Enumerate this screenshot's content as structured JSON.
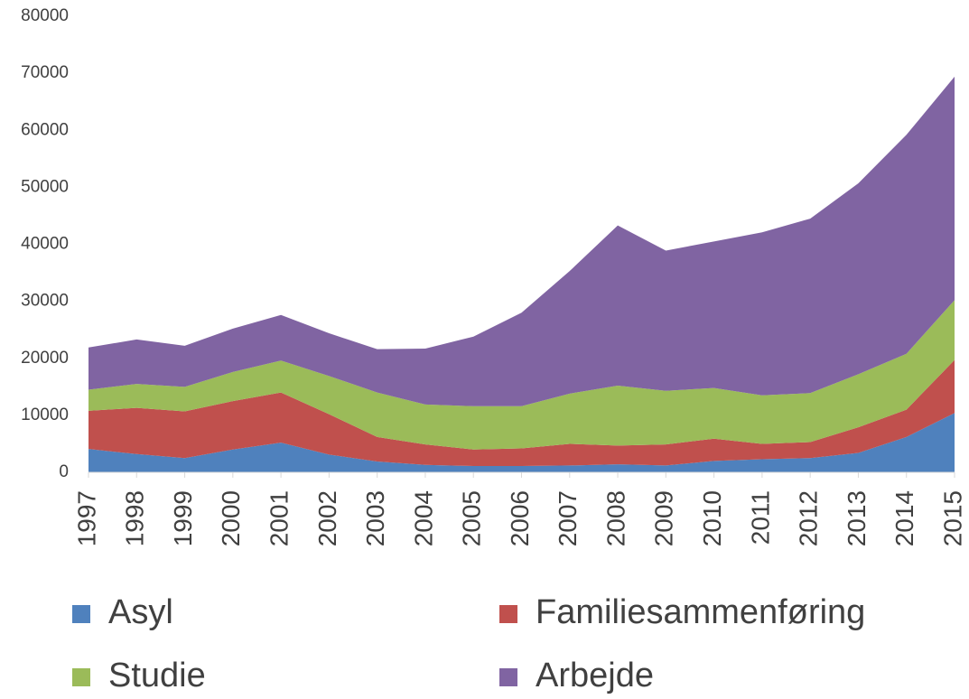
{
  "chart_data": {
    "type": "stacked_area",
    "categories": [
      "1997",
      "1998",
      "1999",
      "2000",
      "2001",
      "2002",
      "2003",
      "2004",
      "2005",
      "2006",
      "2007",
      "2008",
      "2009",
      "2010",
      "2011",
      "2012",
      "2013",
      "2014",
      "2015"
    ],
    "series": [
      {
        "name": "Asyl",
        "color": "#4f81bd",
        "values": [
          4100,
          3200,
          2500,
          4000,
          5200,
          3100,
          1900,
          1300,
          1100,
          1100,
          1200,
          1400,
          1200,
          2000,
          2300,
          2500,
          3400,
          6200,
          10400
        ]
      },
      {
        "name": "Familiesammenføring",
        "color": "#c0504d",
        "values": [
          6700,
          8100,
          8200,
          8500,
          8800,
          7100,
          4300,
          3600,
          2900,
          3100,
          3800,
          3300,
          3700,
          3900,
          2700,
          2800,
          4500,
          4800,
          9300
        ]
      },
      {
        "name": "Studie",
        "color": "#9bbb59",
        "values": [
          3700,
          4200,
          4300,
          5100,
          5600,
          6700,
          7800,
          7000,
          7600,
          7400,
          8800,
          10500,
          9400,
          8900,
          8500,
          8600,
          9300,
          9800,
          10500
        ]
      },
      {
        "name": "Arbejde",
        "color": "#8064a2",
        "values": [
          7400,
          7800,
          7200,
          7600,
          8000,
          7500,
          7600,
          9800,
          12200,
          16400,
          21500,
          28100,
          24600,
          25700,
          28600,
          30600,
          33500,
          38400,
          39200
        ]
      }
    ],
    "ylim": [
      0,
      80000
    ],
    "yticks": [
      0,
      10000,
      20000,
      30000,
      40000,
      50000,
      60000,
      70000,
      80000
    ],
    "legend": "bottom"
  }
}
